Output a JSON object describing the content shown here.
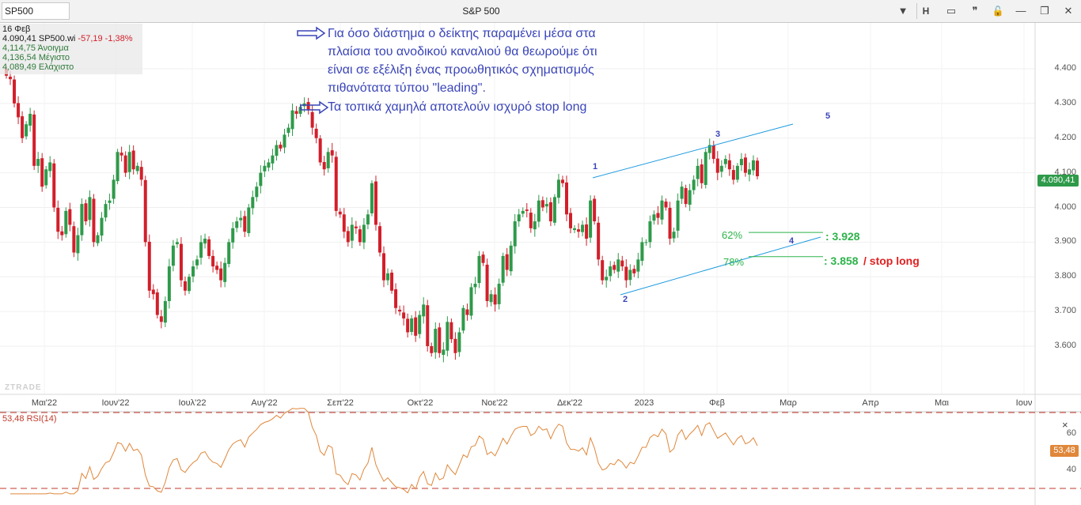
{
  "window": {
    "symbol": "SP500",
    "title": "S&P 500",
    "buttons": {
      "menu": "▼",
      "h": "H",
      "chart": "▭",
      "quote": "❞",
      "lock": "🔓",
      "minimize": "—",
      "restore": "❐",
      "close": "✕"
    }
  },
  "info": {
    "date": "16 Φεβ",
    "last_line_price": "4.090,41 SP500.wi",
    "last_line_change": "-57,19 -1,38%",
    "open": "4,114,75 Άνοιγμα",
    "high": "4,136,54 Μέγιστο",
    "low": "4,089,49 Ελάχιστο"
  },
  "annotations": {
    "line1": "Για όσο διάστημα ο δείκτης παραμένει μέσα στα",
    "line2": "πλαίσια του ανοδικού καναλιού θα θεωρούμε ότι",
    "line3": "είναι σε εξέλιξη ένας προωθητικός σχηματισμός",
    "line4": "πιθανότατα τύπου \"leading\".",
    "line5": "Τα τοπικά χαμηλά αποτελούν ισχυρό stop long"
  },
  "fib": {
    "pct62": "62%",
    "level62": ": 3.928",
    "pct78": "78%",
    "level78": ": 3.858",
    "stop": "/ stop long"
  },
  "waves": {
    "w1": "1",
    "w2": "2",
    "w3": "3",
    "w4": "4",
    "w5": "5"
  },
  "last_price_tag": "4.090,41",
  "rsi": {
    "label": "53,48 RSI(14)",
    "last": "53,48",
    "close_icon": "×"
  },
  "watermark": "ZTRADE",
  "colors": {
    "up": "#2e9a4a",
    "down": "#d21f2a",
    "channel": "#1e9be0",
    "fib": "#2db34a",
    "stop": "#e02020",
    "rsi": "#e0873a",
    "annotation": "#3a45b8"
  },
  "chart_data": [
    {
      "type": "candlestick",
      "title": "S&P 500",
      "x_ticks": [
        "Μαι'22",
        "Ιουν'22",
        "Ιουλ'22",
        "Αυγ'22",
        "Σεπ'22",
        "Οκτ'22",
        "Νοε'22",
        "Δεκ'22",
        "2023",
        "Φεβ",
        "Μαρ",
        "Απρ",
        "Μαι",
        "Ιουν"
      ],
      "y_ticks": [
        "4.400",
        "4.300",
        "4.200",
        "4.100",
        "4.000",
        "3.900",
        "3.800",
        "3.700",
        "3.600"
      ],
      "ylim": [
        3500,
        4500
      ],
      "closes": [
        4380,
        4370,
        4300,
        4260,
        4200,
        4240,
        4270,
        4120,
        4140,
        4060,
        4110,
        4130,
        4000,
        3930,
        3920,
        3990,
        3950,
        3870,
        3920,
        4010,
        3960,
        4030,
        3900,
        3920,
        3970,
        4010,
        4020,
        4080,
        4160,
        4150,
        4100,
        4160,
        4110,
        4120,
        4080,
        3900,
        3760,
        3750,
        3690,
        3670,
        3730,
        3830,
        3890,
        3900,
        3790,
        3760,
        3800,
        3830,
        3850,
        3900,
        3910,
        3860,
        3830,
        3820,
        3790,
        3840,
        3900,
        3940,
        3960,
        3970,
        3930,
        4000,
        4030,
        4060,
        4100,
        4120,
        4130,
        4150,
        4180,
        4170,
        4210,
        4230,
        4280,
        4270,
        4290,
        4300,
        4280,
        4230,
        4200,
        4130,
        4110,
        4160,
        4150,
        3990,
        3980,
        3930,
        3900,
        3950,
        3940,
        3900,
        3950,
        3980,
        4070,
        3950,
        3870,
        3790,
        3810,
        3760,
        3710,
        3700,
        3680,
        3640,
        3680,
        3630,
        3690,
        3720,
        3600,
        3580,
        3650,
        3580,
        3590,
        3670,
        3620,
        3580,
        3640,
        3710,
        3690,
        3770,
        3780,
        3860,
        3840,
        3730,
        3750,
        3720,
        3780,
        3860,
        3820,
        3890,
        3960,
        3980,
        3990,
        3990,
        3940,
        3960,
        4020,
        4000,
        4010,
        3960,
        4030,
        4080,
        4070,
        3980,
        3940,
        3940,
        3930,
        3950,
        3910,
        4020,
        3960,
        3850,
        3790,
        3800,
        3830,
        3820,
        3850,
        3830,
        3790,
        3820,
        3810,
        3850,
        3900,
        3900,
        3960,
        3980,
        3970,
        4020,
        4000,
        3910,
        3930,
        4020,
        4060,
        4010,
        4050,
        4080,
        4120,
        4070,
        4160,
        4180,
        4140,
        4100,
        4120,
        4140,
        4110,
        4080,
        4120,
        4140,
        4100,
        4110,
        4136,
        4090
      ],
      "candle_range": [
        "2022-04-25",
        "2023-02-16"
      ],
      "channel_labels": [
        "1",
        "2",
        "3",
        "4",
        "5"
      ],
      "fib_levels": [
        {
          "name": "62%",
          "value": 3928
        },
        {
          "name": "78%",
          "value": 3858,
          "note": "stop long"
        }
      ]
    },
    {
      "type": "line",
      "title": "53,48 RSI(14)",
      "y_ticks": [
        "60",
        "40"
      ],
      "ylim": [
        30,
        70
      ],
      "reference_lines": [
        70,
        30
      ],
      "last": 53.48
    }
  ]
}
